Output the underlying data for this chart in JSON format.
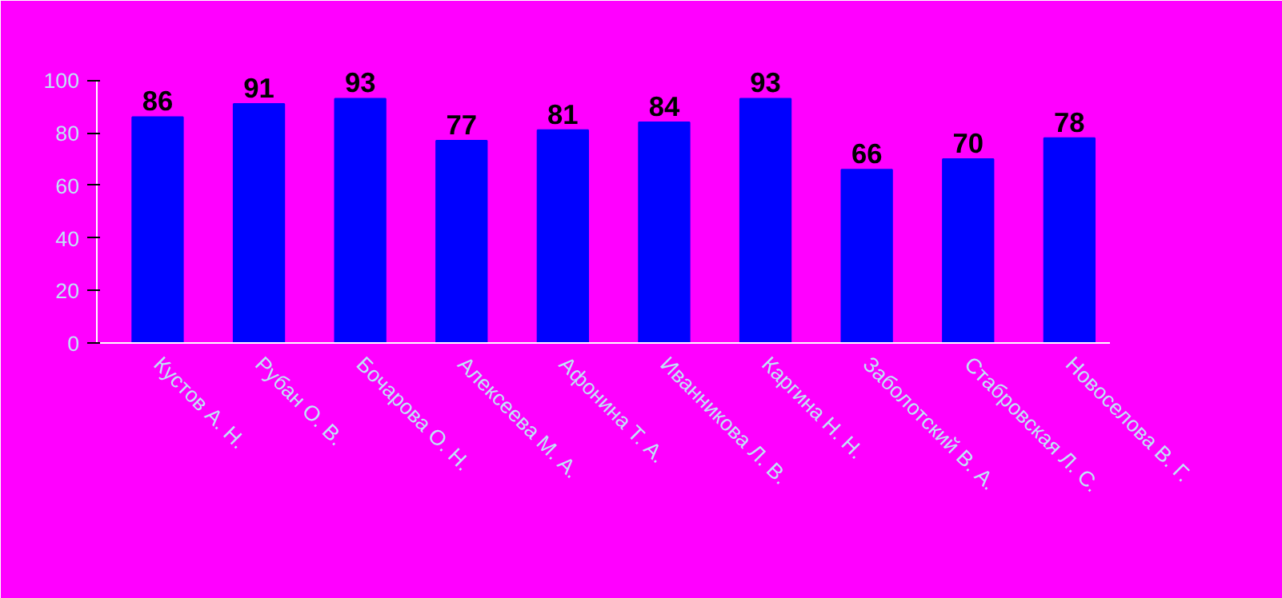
{
  "chart_data": {
    "type": "bar",
    "categories": [
      "Кустов А. Н.",
      "Рубан О. В.",
      "Бочарова О. Н.",
      "Алексеева М. А.",
      "Афонина Т. А.",
      "Иванникова Л. В.",
      "Каргина Н. Н.",
      "Заболотский В. А.",
      "Стабровская Л. С.",
      "Новоселова В. Г."
    ],
    "values": [
      86,
      91,
      93,
      77,
      81,
      84,
      93,
      66,
      70,
      78
    ],
    "color": "#0000ff",
    "ylim": [
      0,
      100
    ],
    "yticks": [
      0,
      20,
      40,
      60,
      80,
      100
    ],
    "grid": false,
    "data_labels": true
  }
}
